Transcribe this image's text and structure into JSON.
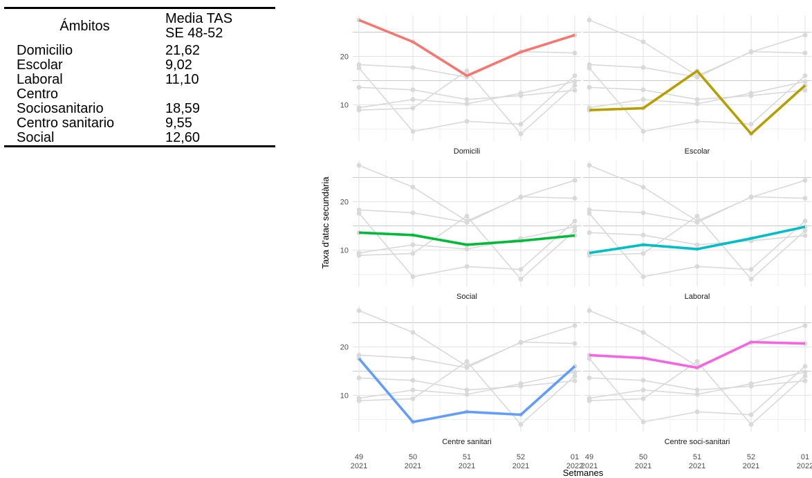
{
  "table": {
    "headers": [
      "Ámbitos",
      "Media TAS",
      "SE 48-52"
    ],
    "rows": [
      {
        "label": "Domicilio",
        "value": "21,62"
      },
      {
        "label": "Escolar",
        "value": "9,02"
      },
      {
        "label": "Laboral",
        "value": "11,10"
      },
      {
        "label": "Centro",
        "value": ""
      },
      {
        "label": "Sociosanitario",
        "value": "18,59"
      },
      {
        "label": "Centro sanitario",
        "value": "9,55"
      },
      {
        "label": "Social",
        "value": "12,60"
      }
    ]
  },
  "chart_data": {
    "type": "line",
    "layout": "faceted 3x2, each facet highlights one series over grey copies of all series",
    "xlabel": "Setmanes",
    "ylabel": "Taxa d’atac secundària",
    "x_ticks": [
      "49\n2021",
      "50\n2021",
      "51\n2021",
      "52\n2021",
      "01\n2022"
    ],
    "y_ticks": [
      10,
      20
    ],
    "ylim": [
      2.5,
      28.5
    ],
    "grid": true,
    "legend": "none",
    "background_series_color": "#d9d9d9",
    "series": [
      {
        "name": "Domicili",
        "color": "#f8766d",
        "values": [
          27.5,
          23.0,
          16.0,
          20.9,
          24.4
        ]
      },
      {
        "name": "Escolar",
        "color": "#b79f00",
        "values": [
          8.9,
          9.3,
          17.0,
          4.0,
          14.0
        ]
      },
      {
        "name": "Social",
        "color": "#00ba38",
        "values": [
          13.6,
          13.1,
          11.1,
          11.9,
          13.0
        ]
      },
      {
        "name": "Laboral",
        "color": "#00bfc4",
        "values": [
          9.4,
          11.1,
          10.2,
          12.4,
          14.8
        ]
      },
      {
        "name": "Centre sanitari",
        "color": "#619cff",
        "values": [
          17.6,
          4.5,
          6.6,
          6.0,
          16.0
        ]
      },
      {
        "name": "Centre soci-sanitari",
        "color": "#f564e3",
        "values": [
          18.3,
          17.7,
          15.7,
          21.0,
          20.7
        ]
      }
    ]
  }
}
